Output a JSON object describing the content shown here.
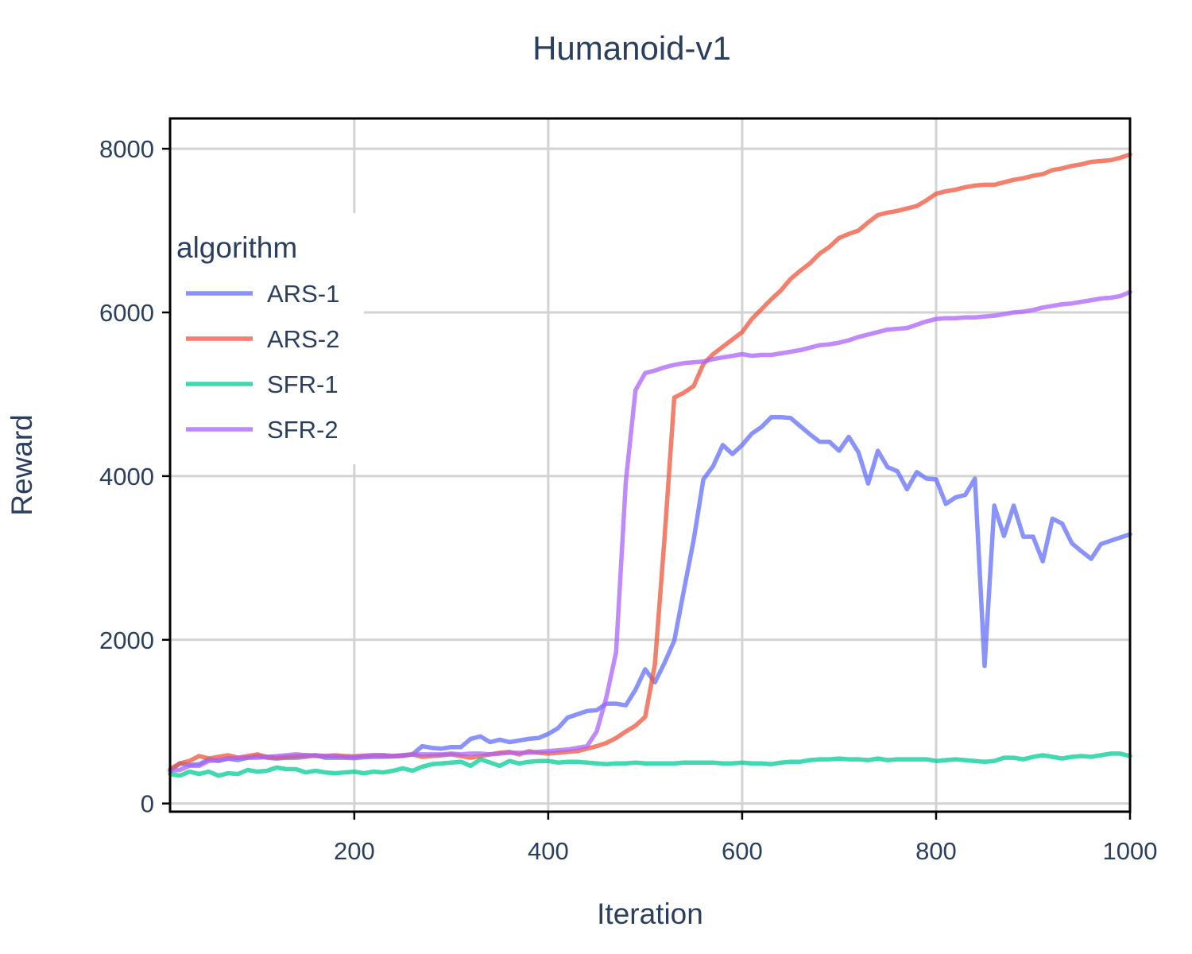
{
  "chart_data": {
    "type": "line",
    "title": "Humanoid-v1",
    "xlabel": "Iteration",
    "ylabel": "Reward",
    "xlim": [
      10,
      1000
    ],
    "ylim": [
      -100,
      8370
    ],
    "xticks": [
      200,
      400,
      600,
      800,
      1000
    ],
    "yticks": [
      0,
      2000,
      4000,
      6000,
      8000
    ],
    "grid": true,
    "legend": {
      "title": "algorithm",
      "placement": "top-left"
    },
    "x": [
      10,
      20,
      30,
      40,
      50,
      60,
      70,
      80,
      90,
      100,
      110,
      120,
      130,
      140,
      150,
      160,
      170,
      180,
      190,
      200,
      210,
      220,
      230,
      240,
      250,
      260,
      270,
      280,
      290,
      300,
      310,
      320,
      330,
      340,
      350,
      360,
      370,
      380,
      390,
      400,
      410,
      420,
      430,
      440,
      450,
      460,
      470,
      480,
      490,
      500,
      510,
      520,
      530,
      540,
      550,
      560,
      570,
      580,
      590,
      600,
      610,
      620,
      630,
      640,
      650,
      660,
      670,
      680,
      690,
      700,
      710,
      720,
      730,
      740,
      750,
      760,
      770,
      780,
      790,
      800,
      810,
      820,
      830,
      840,
      850,
      860,
      870,
      880,
      890,
      900,
      910,
      920,
      930,
      940,
      950,
      960,
      970,
      980,
      990,
      1000
    ],
    "series": [
      {
        "name": "ARS-1",
        "color": "#636efa",
        "values": [
          400,
          490,
          470,
          480,
          540,
          520,
          550,
          530,
          560,
          580,
          560,
          550,
          560,
          560,
          570,
          590,
          560,
          560,
          560,
          555,
          565,
          570,
          570,
          575,
          580,
          600,
          700,
          680,
          670,
          690,
          690,
          790,
          820,
          750,
          780,
          750,
          770,
          790,
          800,
          850,
          920,
          1050,
          1090,
          1130,
          1140,
          1220,
          1220,
          1200,
          1390,
          1640,
          1480,
          1720,
          1990,
          2610,
          3220,
          3960,
          4120,
          4380,
          4270,
          4380,
          4520,
          4600,
          4720,
          4720,
          4710,
          4610,
          4510,
          4420,
          4420,
          4310,
          4480,
          4290,
          3910,
          4310,
          4110,
          4060,
          3840,
          4050,
          3970,
          3960,
          3660,
          3740,
          3770,
          3970,
          1680,
          3640,
          3270,
          3640,
          3260,
          3260,
          2960,
          3480,
          3420,
          3180,
          3080,
          2990,
          3170,
          3210,
          3250,
          3290
        ]
      },
      {
        "name": "ARS-2",
        "color": "#ef553b",
        "values": [
          420,
          490,
          520,
          580,
          550,
          570,
          590,
          560,
          580,
          600,
          570,
          560,
          570,
          580,
          590,
          580,
          580,
          590,
          580,
          575,
          585,
          590,
          590,
          580,
          590,
          600,
          570,
          580,
          590,
          600,
          580,
          560,
          580,
          600,
          620,
          630,
          600,
          640,
          620,
          610,
          620,
          630,
          640,
          670,
          700,
          740,
          800,
          880,
          950,
          1060,
          1700,
          3250,
          4960,
          5020,
          5100,
          5370,
          5490,
          5580,
          5670,
          5760,
          5920,
          6040,
          6160,
          6270,
          6410,
          6510,
          6600,
          6720,
          6800,
          6910,
          6960,
          7000,
          7100,
          7190,
          7220,
          7240,
          7270,
          7300,
          7370,
          7450,
          7480,
          7500,
          7530,
          7550,
          7560,
          7560,
          7590,
          7620,
          7640,
          7670,
          7690,
          7740,
          7760,
          7790,
          7810,
          7840,
          7850,
          7860,
          7890,
          7930
        ]
      },
      {
        "name": "SFR-1",
        "color": "#00cc96",
        "values": [
          360,
          340,
          390,
          360,
          390,
          340,
          370,
          360,
          410,
          390,
          400,
          440,
          420,
          420,
          380,
          400,
          380,
          370,
          380,
          390,
          370,
          390,
          380,
          400,
          430,
          400,
          450,
          480,
          490,
          500,
          510,
          460,
          540,
          500,
          460,
          520,
          490,
          510,
          520,
          520,
          500,
          510,
          510,
          500,
          490,
          480,
          490,
          490,
          500,
          490,
          490,
          490,
          490,
          500,
          500,
          500,
          500,
          490,
          490,
          500,
          490,
          490,
          480,
          500,
          510,
          510,
          530,
          540,
          540,
          550,
          540,
          540,
          530,
          550,
          530,
          540,
          540,
          540,
          540,
          520,
          530,
          540,
          530,
          520,
          510,
          520,
          560,
          560,
          540,
          570,
          590,
          570,
          550,
          570,
          580,
          570,
          590,
          610,
          610,
          580
        ]
      },
      {
        "name": "SFR-2",
        "color": "#ab63fa",
        "values": [
          400,
          410,
          460,
          460,
          520,
          530,
          550,
          560,
          560,
          560,
          570,
          580,
          590,
          600,
          590,
          590,
          580,
          580,
          570,
          570,
          580,
          590,
          590,
          580,
          590,
          600,
          600,
          600,
          600,
          610,
          600,
          610,
          610,
          600,
          610,
          620,
          620,
          620,
          630,
          640,
          650,
          660,
          680,
          700,
          880,
          1300,
          1850,
          3930,
          5050,
          5260,
          5290,
          5330,
          5360,
          5380,
          5390,
          5400,
          5430,
          5450,
          5470,
          5490,
          5470,
          5480,
          5480,
          5500,
          5520,
          5540,
          5570,
          5600,
          5610,
          5630,
          5660,
          5700,
          5730,
          5760,
          5790,
          5800,
          5810,
          5850,
          5890,
          5920,
          5930,
          5930,
          5940,
          5940,
          5950,
          5960,
          5980,
          6000,
          6010,
          6030,
          6060,
          6080,
          6100,
          6110,
          6130,
          6150,
          6170,
          6180,
          6200,
          6250
        ]
      }
    ]
  }
}
